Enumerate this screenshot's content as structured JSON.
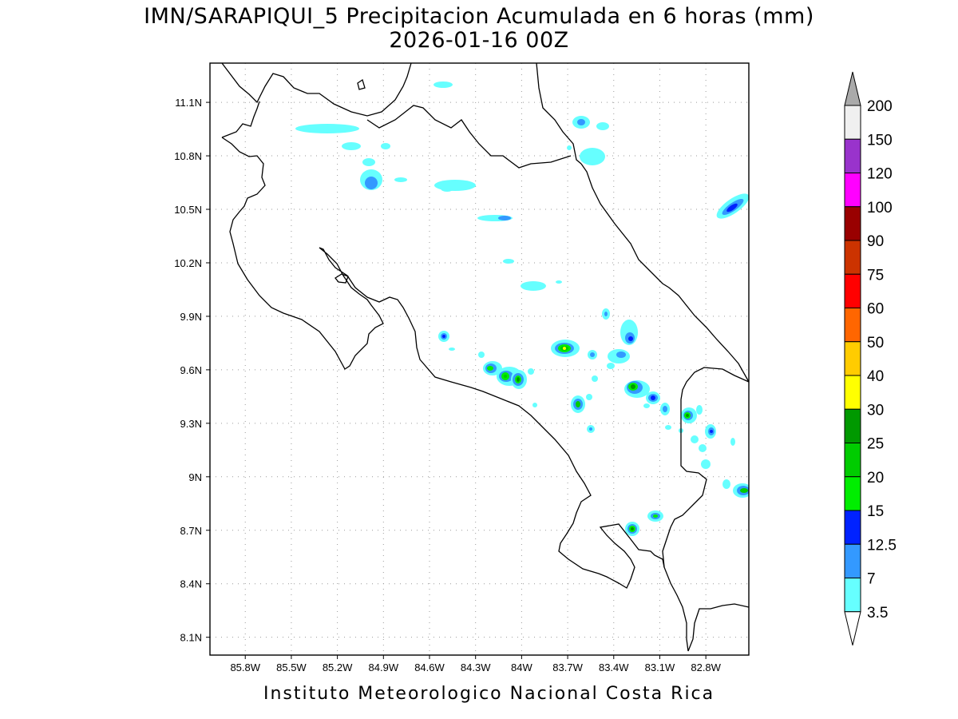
{
  "title_line1": "IMN/SARAPIQUI_5 Precipitacion Acumulada en 6 horas (mm)",
  "title_line2": "2026-01-16 00Z",
  "credit": "Instituto Meteorologico Nacional Costa Rica",
  "map": {
    "lon_range": [
      -86.03,
      -82.52
    ],
    "lat_range": [
      8.0,
      11.32
    ],
    "lat_ticks": [
      {
        "value": 11.1,
        "label": "11.1N"
      },
      {
        "value": 10.8,
        "label": "10.8N"
      },
      {
        "value": 10.5,
        "label": "10.5N"
      },
      {
        "value": 10.2,
        "label": "10.2N"
      },
      {
        "value": 9.9,
        "label": "9.9N"
      },
      {
        "value": 9.6,
        "label": "9.6N"
      },
      {
        "value": 9.3,
        "label": "9.3N"
      },
      {
        "value": 9.0,
        "label": "9N"
      },
      {
        "value": 8.7,
        "label": "8.7N"
      },
      {
        "value": 8.4,
        "label": "8.4N"
      },
      {
        "value": 8.1,
        "label": "8.1N"
      }
    ],
    "lon_ticks": [
      {
        "value": -85.8,
        "label": "85.8W"
      },
      {
        "value": -85.5,
        "label": "85.5W"
      },
      {
        "value": -85.2,
        "label": "85.2W"
      },
      {
        "value": -84.9,
        "label": "84.9W"
      },
      {
        "value": -84.6,
        "label": "84.6W"
      },
      {
        "value": -84.3,
        "label": "84.3W"
      },
      {
        "value": -84.0,
        "label": "84W"
      },
      {
        "value": -83.7,
        "label": "83.7W"
      },
      {
        "value": -83.4,
        "label": "83.4W"
      },
      {
        "value": -83.1,
        "label": "83.1W"
      },
      {
        "value": -82.8,
        "label": "82.8W"
      }
    ],
    "grid": true
  },
  "colorbar": {
    "levels": [
      "3.5",
      "7",
      "12.5",
      "15",
      "20",
      "25",
      "30",
      "40",
      "50",
      "60",
      "75",
      "90",
      "100",
      "120",
      "150",
      "200"
    ],
    "colors": [
      "#66ffff",
      "#3399ff",
      "#0022ff",
      "#00ee00",
      "#00cc00",
      "#009900",
      "#ffff00",
      "#ffcc00",
      "#ff6600",
      "#ff0000",
      "#cc3300",
      "#990000",
      "#ff00ff",
      "#9933cc",
      "#f0f0f0",
      "#aaaaaa"
    ]
  },
  "precip_cells": [
    {
      "lon": -84.95,
      "lat": 10.95,
      "max": "3.5"
    },
    {
      "lon": -85.18,
      "lat": 10.93,
      "max": "3.5"
    },
    {
      "lon": -84.93,
      "lat": 10.66,
      "max": "7"
    },
    {
      "lon": -84.45,
      "lat": 10.62,
      "max": "3.5"
    },
    {
      "lon": -84.1,
      "lat": 10.44,
      "max": "7"
    },
    {
      "lon": -83.59,
      "lat": 10.99,
      "max": "7"
    },
    {
      "lon": -83.5,
      "lat": 10.82,
      "max": "3.5"
    },
    {
      "lon": -82.6,
      "lat": 10.48,
      "max": "12.5"
    },
    {
      "lon": -83.9,
      "lat": 10.07,
      "max": "3.5"
    },
    {
      "lon": -84.47,
      "lat": 9.78,
      "max": "12.5"
    },
    {
      "lon": -84.2,
      "lat": 9.6,
      "max": "15"
    },
    {
      "lon": -84.07,
      "lat": 9.55,
      "max": "20"
    },
    {
      "lon": -84.0,
      "lat": 9.54,
      "max": "25"
    },
    {
      "lon": -83.65,
      "lat": 9.71,
      "max": "30"
    },
    {
      "lon": -83.53,
      "lat": 9.67,
      "max": "12.5"
    },
    {
      "lon": -83.6,
      "lat": 9.39,
      "max": "25"
    },
    {
      "lon": -83.25,
      "lat": 9.77,
      "max": "12.5"
    },
    {
      "lon": -83.23,
      "lat": 9.49,
      "max": "25"
    },
    {
      "lon": -83.11,
      "lat": 9.43,
      "max": "15"
    },
    {
      "lon": -82.93,
      "lat": 9.33,
      "max": "25"
    },
    {
      "lon": -82.8,
      "lat": 9.24,
      "max": "12.5"
    },
    {
      "lon": -82.55,
      "lat": 8.91,
      "max": "20"
    },
    {
      "lon": -83.23,
      "lat": 8.71,
      "max": "25"
    },
    {
      "lon": -83.1,
      "lat": 8.78,
      "max": "15"
    }
  ]
}
